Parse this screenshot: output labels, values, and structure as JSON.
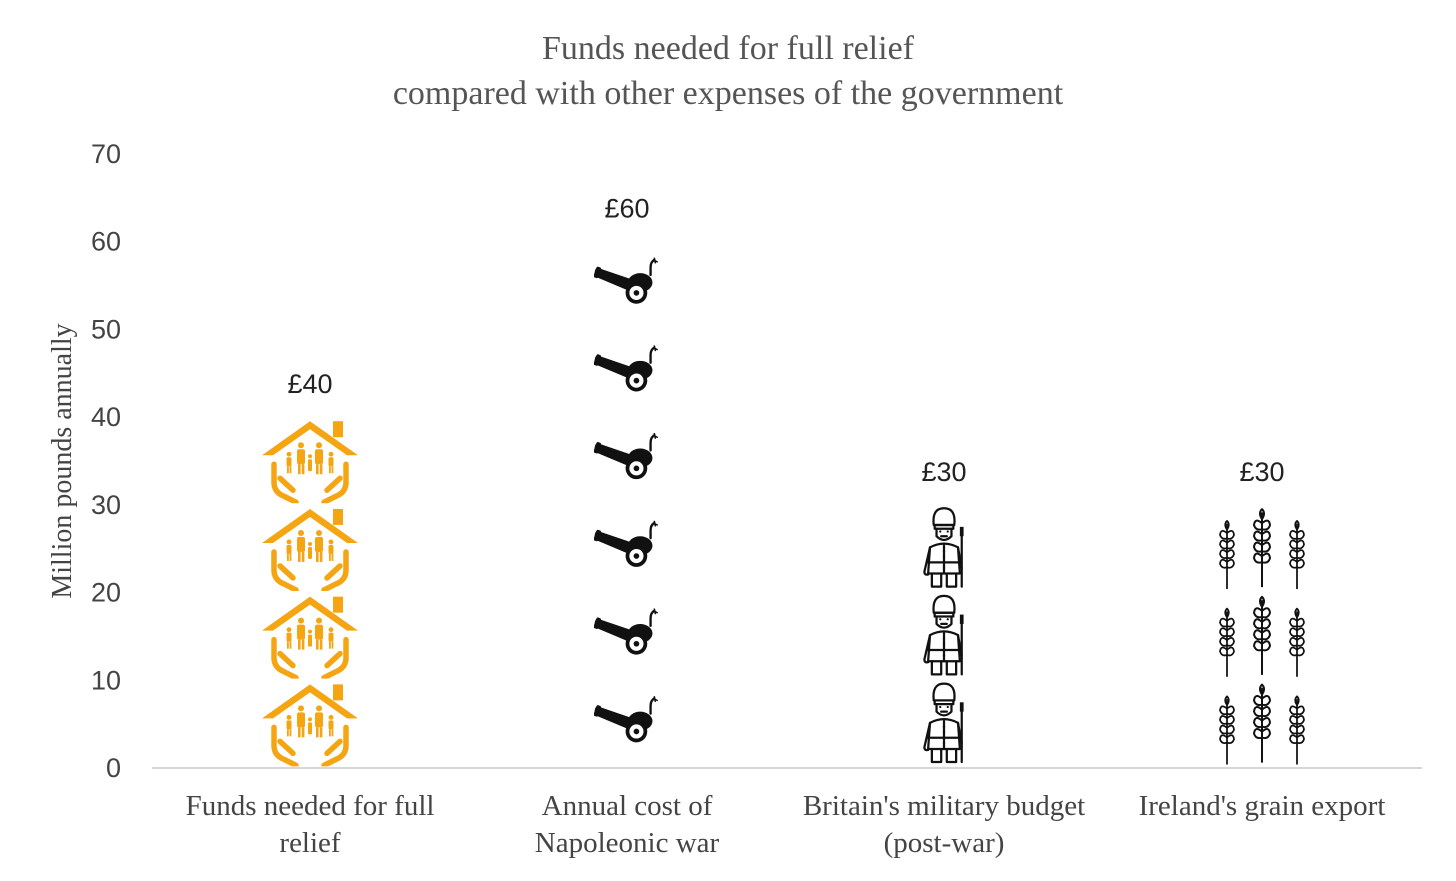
{
  "chart_data": {
    "type": "bar",
    "title_lines": [
      "Funds needed for full relief",
      "compared with other expenses of the government"
    ],
    "ylabel": "Million pounds annually",
    "xlabel": "",
    "ylim": [
      0,
      70
    ],
    "yticks": [
      "0",
      "10",
      "20",
      "30",
      "40",
      "50",
      "60",
      "70"
    ],
    "ytick_values": [
      0,
      10,
      20,
      30,
      40,
      50,
      60,
      70
    ],
    "grid": false,
    "categories": [
      {
        "lines": [
          "Funds needed for full",
          "relief"
        ]
      },
      {
        "lines": [
          "Annual cost of",
          "Napoleonic war"
        ]
      },
      {
        "lines": [
          "Britain's military budget",
          "(post-war)"
        ]
      },
      {
        "lines": [
          "Ireland's grain export"
        ]
      }
    ],
    "values": [
      40,
      60,
      30,
      30
    ],
    "data_labels": [
      "£40",
      "£60",
      "£30",
      "£30"
    ],
    "icons": [
      "house-family-hands-icon",
      "cannon-icon",
      "soldier-icon",
      "wheat-icon"
    ],
    "icon_unit": 10,
    "colors": {
      "house-family-hands-icon": "#F5A412",
      "cannon-icon": "#111111",
      "soldier-icon": "#111111",
      "wheat-icon": "#111111",
      "axis": "#c8c8c8"
    }
  }
}
